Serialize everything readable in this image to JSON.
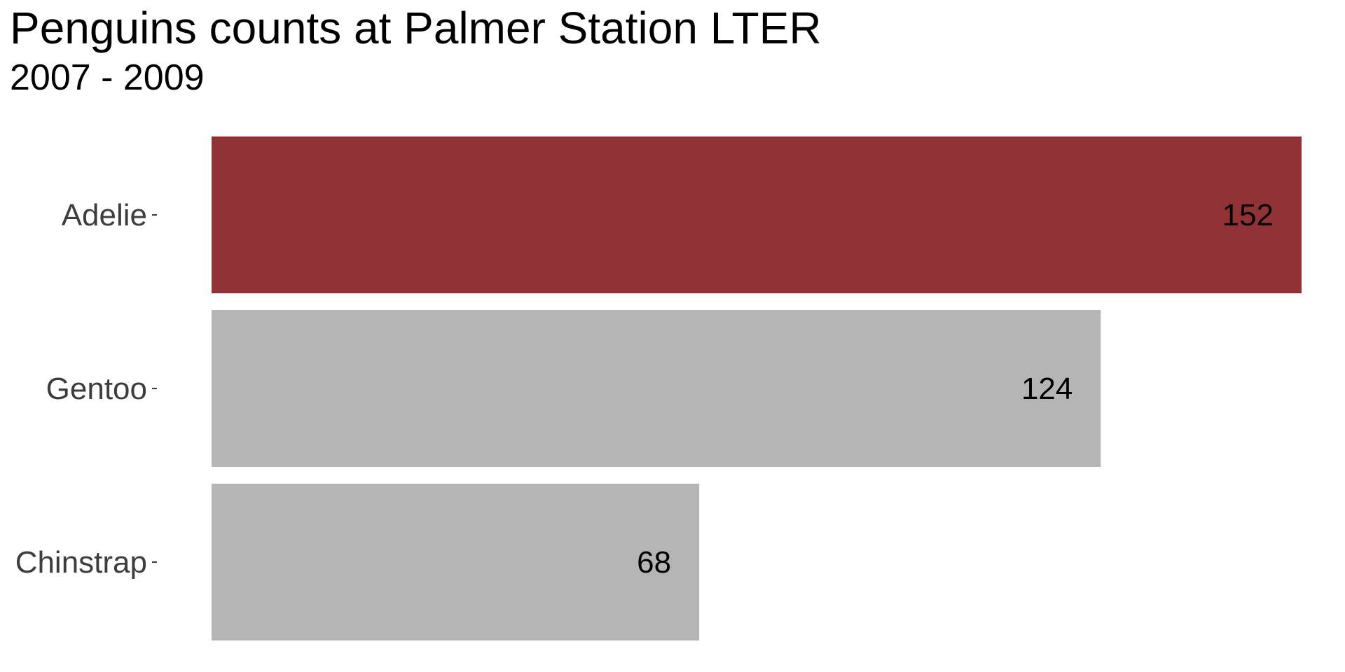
{
  "chart_data": {
    "type": "bar",
    "orientation": "horizontal",
    "title": "Penguins counts at Palmer Station LTER",
    "subtitle": "2007 - 2009",
    "categories": [
      "Adelie",
      "Gentoo",
      "Chinstrap"
    ],
    "values": [
      152,
      124,
      68
    ],
    "highlight": "Adelie",
    "colors": {
      "highlight": "#913336",
      "default": "#B5B5B5",
      "label_text": "#000000",
      "axis_text": "#3D3D3D",
      "title_text": "#000000"
    },
    "xlim": [
      0,
      152
    ],
    "grid": false,
    "legend": "none"
  }
}
